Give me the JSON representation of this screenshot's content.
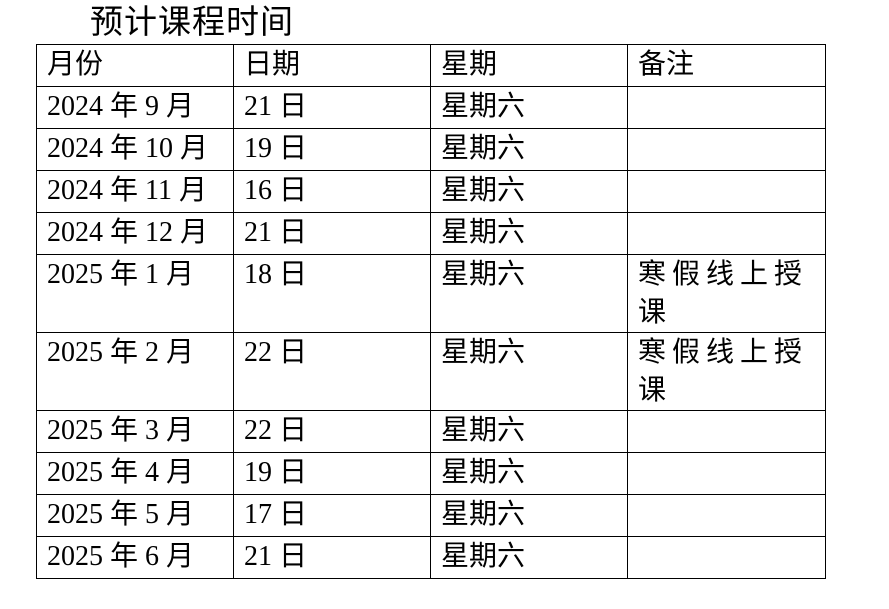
{
  "page": {
    "title": "预计课程时间"
  },
  "table": {
    "headers": [
      "月份",
      "日期",
      "星期",
      "备注"
    ],
    "rows": [
      {
        "month": "2024 年 9 月",
        "date": "21 日",
        "week": "星期六",
        "note": ""
      },
      {
        "month": "2024 年 10 月",
        "date": "19 日",
        "week": "星期六",
        "note": ""
      },
      {
        "month": "2024 年 11 月",
        "date": "16 日",
        "week": "星期六",
        "note": ""
      },
      {
        "month": "2024 年 12 月",
        "date": "21 日",
        "week": "星期六",
        "note": ""
      },
      {
        "month": "2025 年 1 月",
        "date": "18 日",
        "week": "星期六",
        "note": "寒假线上授课"
      },
      {
        "month": "2025 年 2 月",
        "date": "22 日",
        "week": "星期六",
        "note": "寒假线上授课"
      },
      {
        "month": "2025 年 3 月",
        "date": "22 日",
        "week": "星期六",
        "note": ""
      },
      {
        "month": "2025 年 4 月",
        "date": "19 日",
        "week": "星期六",
        "note": ""
      },
      {
        "month": "2025 年 5 月",
        "date": "17 日",
        "week": "星期六",
        "note": ""
      },
      {
        "month": "2025 年 6 月",
        "date": "21 日",
        "week": "星期六",
        "note": ""
      }
    ]
  }
}
